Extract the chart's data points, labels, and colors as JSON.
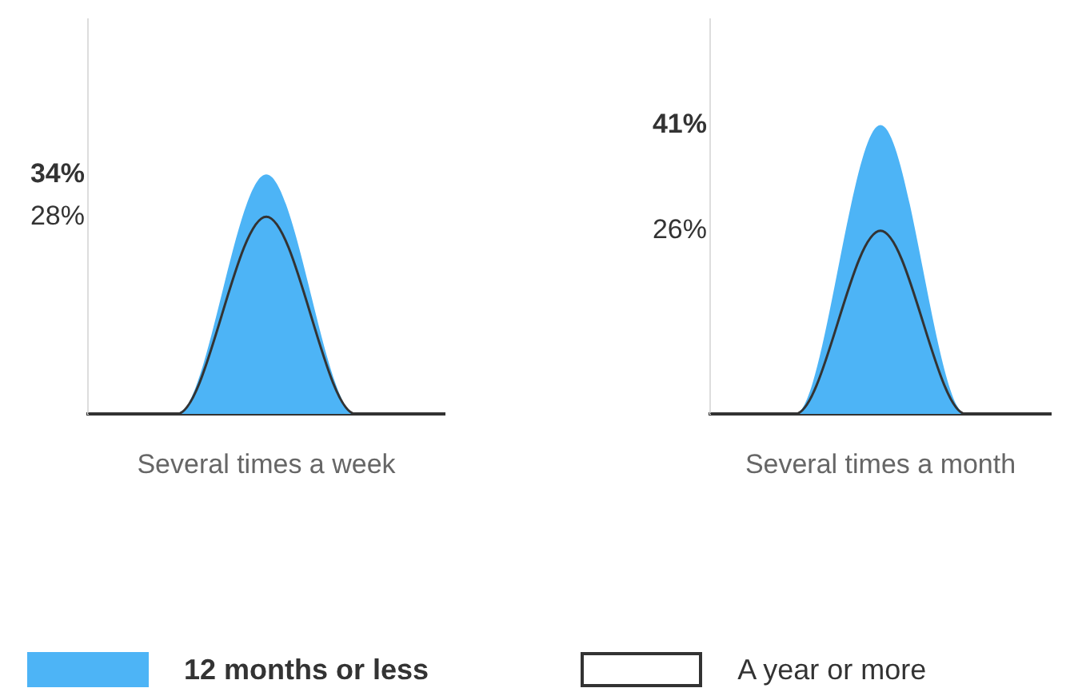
{
  "chart_data": [
    {
      "type": "area",
      "categories": [
        null,
        null,
        "Several times a week",
        null,
        null
      ],
      "ylim": [
        0,
        56
      ],
      "yticks": [
        {
          "value": 28,
          "label": "28%"
        },
        {
          "value": 34,
          "label": "34%"
        }
      ],
      "legend": "bottom",
      "grid": false,
      "series": [
        {
          "name": "12 months or less",
          "color": "#4db4f6",
          "values": [
            0,
            0,
            34,
            0,
            0
          ]
        },
        {
          "name": "A year or more",
          "type": "line",
          "color": "#333333",
          "values": [
            0,
            0,
            28,
            0,
            0
          ]
        }
      ]
    },
    {
      "type": "area",
      "categories": [
        null,
        null,
        "Several times a month",
        null,
        null
      ],
      "ylim": [
        0,
        56
      ],
      "yticks": [
        {
          "value": 26,
          "label": "26%"
        },
        {
          "value": 41,
          "label": "41%"
        }
      ],
      "grid": false,
      "series": [
        {
          "color": "#4db4f6",
          "values": [
            0,
            0,
            41,
            0,
            0
          ]
        },
        {
          "type": "line",
          "color": "#333333",
          "values": [
            0,
            0,
            26,
            0,
            0
          ]
        }
      ]
    }
  ]
}
